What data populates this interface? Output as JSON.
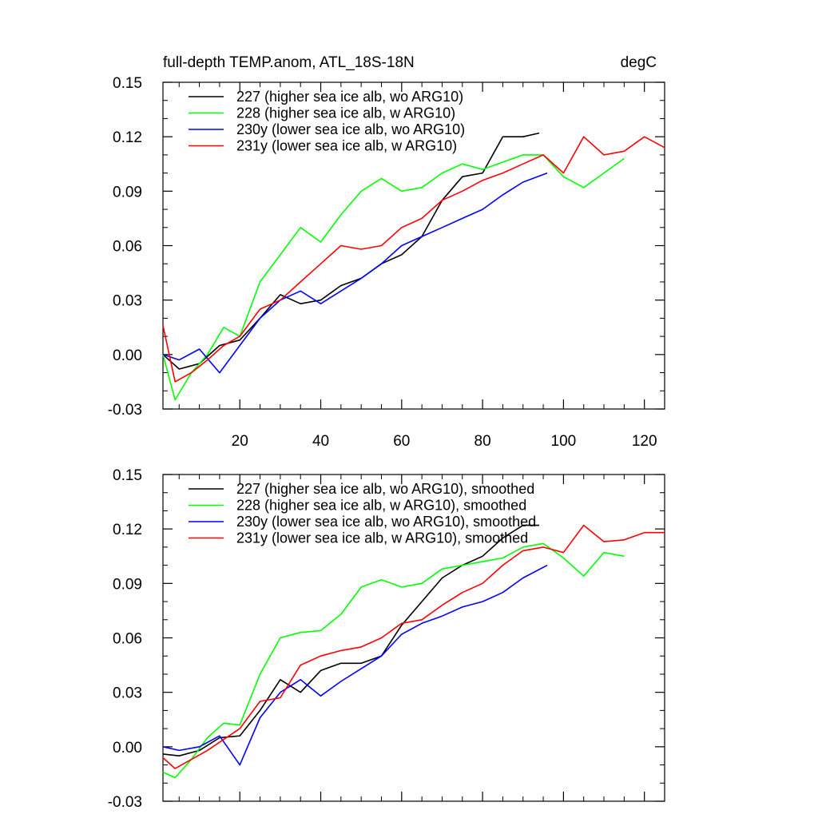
{
  "chart_data": [
    {
      "type": "line",
      "title": "full-depth TEMP.anom, ATL_18S-18N",
      "units": "degC",
      "xlabel": "",
      "ylabel": "",
      "xlim": [
        1,
        125
      ],
      "ylim": [
        -0.03,
        0.15
      ],
      "xticks": [
        20,
        40,
        60,
        80,
        100,
        120
      ],
      "xtick_labels": [
        "20",
        "40",
        "60",
        "80",
        "100",
        "120"
      ],
      "yticks": [
        -0.03,
        0.0,
        0.03,
        0.06,
        0.09,
        0.12,
        0.15
      ],
      "ytick_labels": [
        "-0.03",
        "0.00",
        "0.03",
        "0.06",
        "0.09",
        "0.12",
        "0.15"
      ],
      "legend_position": "top-left",
      "grid": false,
      "series": [
        {
          "name": "227 (higher sea ice alb, wo ARG10)",
          "color": "#000000",
          "x": [
            1,
            5,
            10,
            15,
            20,
            25,
            30,
            35,
            40,
            45,
            50,
            55,
            60,
            65,
            70,
            75,
            80,
            85,
            90,
            94
          ],
          "values": [
            0.0,
            -0.008,
            -0.005,
            0.005,
            0.008,
            0.02,
            0.033,
            0.028,
            0.03,
            0.038,
            0.042,
            0.05,
            0.055,
            0.065,
            0.085,
            0.098,
            0.1,
            0.12,
            0.12,
            0.122
          ]
        },
        {
          "name": "228 (higher sea ice alb, w ARG10)",
          "color": "#00ff00",
          "x": [
            1,
            4,
            8,
            12,
            16,
            20,
            25,
            30,
            35,
            40,
            45,
            50,
            55,
            60,
            65,
            70,
            75,
            80,
            85,
            90,
            95,
            100,
            105,
            110,
            115
          ],
          "values": [
            0.0,
            -0.025,
            -0.01,
            0.0,
            0.015,
            0.01,
            0.04,
            0.055,
            0.07,
            0.062,
            0.077,
            0.09,
            0.097,
            0.09,
            0.092,
            0.1,
            0.105,
            0.102,
            0.106,
            0.11,
            0.11,
            0.098,
            0.092,
            0.1,
            0.108
          ]
        },
        {
          "name": "230y (lower sea ice alb, wo ARG10)",
          "color": "#0000ff",
          "x": [
            1,
            5,
            10,
            15,
            20,
            25,
            30,
            35,
            40,
            45,
            50,
            55,
            60,
            65,
            70,
            75,
            80,
            85,
            90,
            96
          ],
          "values": [
            0.0,
            -0.003,
            0.003,
            -0.01,
            0.005,
            0.02,
            0.03,
            0.035,
            0.028,
            0.035,
            0.042,
            0.05,
            0.06,
            0.065,
            0.07,
            0.075,
            0.08,
            0.088,
            0.095,
            0.1
          ]
        },
        {
          "name": "231y (lower sea ice alb, w ARG10)",
          "color": "#ff0000",
          "x": [
            1,
            4,
            8,
            12,
            16,
            20,
            25,
            30,
            35,
            40,
            45,
            50,
            55,
            60,
            65,
            70,
            75,
            80,
            85,
            90,
            95,
            100,
            105,
            110,
            115,
            120,
            125
          ],
          "values": [
            0.016,
            -0.015,
            -0.01,
            -0.003,
            0.005,
            0.01,
            0.025,
            0.03,
            0.04,
            0.05,
            0.06,
            0.058,
            0.06,
            0.07,
            0.075,
            0.085,
            0.09,
            0.096,
            0.1,
            0.105,
            0.11,
            0.1,
            0.12,
            0.11,
            0.112,
            0.12,
            0.114
          ]
        }
      ]
    },
    {
      "type": "line",
      "title": "",
      "xlim": [
        1,
        125
      ],
      "ylim": [
        -0.03,
        0.15
      ],
      "xticks": [
        20,
        40,
        60,
        80,
        100,
        120
      ],
      "xtick_labels": [],
      "yticks": [
        -0.03,
        0.0,
        0.03,
        0.06,
        0.09,
        0.12,
        0.15
      ],
      "ytick_labels": [
        "-0.03",
        "0.00",
        "0.03",
        "0.06",
        "0.09",
        "0.12",
        "0.15"
      ],
      "legend_position": "top-left",
      "grid": false,
      "series": [
        {
          "name": "227 (higher sea ice alb, wo ARG10), smoothed",
          "color": "#000000",
          "x": [
            1,
            5,
            10,
            15,
            20,
            25,
            30,
            35,
            40,
            45,
            50,
            55,
            60,
            65,
            70,
            75,
            80,
            85,
            90,
            94
          ],
          "values": [
            -0.004,
            -0.005,
            -0.002,
            0.005,
            0.006,
            0.02,
            0.037,
            0.03,
            0.042,
            0.046,
            0.046,
            0.05,
            0.067,
            0.08,
            0.093,
            0.1,
            0.105,
            0.115,
            0.122,
            0.122
          ]
        },
        {
          "name": "228 (higher sea ice alb, w ARG10), smoothed",
          "color": "#00ff00",
          "x": [
            1,
            4,
            8,
            12,
            16,
            20,
            25,
            30,
            35,
            40,
            45,
            50,
            55,
            60,
            65,
            70,
            75,
            80,
            85,
            90,
            95,
            100,
            105,
            110,
            115
          ],
          "values": [
            -0.014,
            -0.017,
            -0.007,
            0.005,
            0.013,
            0.012,
            0.04,
            0.06,
            0.063,
            0.064,
            0.073,
            0.088,
            0.092,
            0.088,
            0.09,
            0.098,
            0.1,
            0.102,
            0.104,
            0.11,
            0.112,
            0.104,
            0.094,
            0.107,
            0.105
          ]
        },
        {
          "name": "230y (lower sea ice alb, wo ARG10), smoothed",
          "color": "#0000ff",
          "x": [
            1,
            5,
            10,
            15,
            20,
            25,
            30,
            35,
            40,
            45,
            50,
            55,
            60,
            65,
            70,
            75,
            80,
            85,
            90,
            96
          ],
          "values": [
            0.0,
            -0.002,
            0.0,
            0.006,
            -0.01,
            0.016,
            0.03,
            0.037,
            0.028,
            0.036,
            0.043,
            0.05,
            0.062,
            0.068,
            0.072,
            0.077,
            0.08,
            0.085,
            0.093,
            0.1
          ]
        },
        {
          "name": "231y (lower sea ice alb, w ARG10), smoothed",
          "color": "#ff0000",
          "x": [
            1,
            4,
            8,
            12,
            16,
            20,
            25,
            30,
            35,
            40,
            45,
            50,
            55,
            60,
            65,
            70,
            75,
            80,
            85,
            90,
            95,
            100,
            105,
            110,
            115,
            120,
            125
          ],
          "values": [
            -0.006,
            -0.012,
            -0.007,
            -0.002,
            0.004,
            0.01,
            0.025,
            0.027,
            0.045,
            0.05,
            0.053,
            0.055,
            0.06,
            0.068,
            0.07,
            0.078,
            0.085,
            0.09,
            0.1,
            0.108,
            0.11,
            0.107,
            0.122,
            0.113,
            0.114,
            0.118,
            0.118
          ]
        }
      ]
    }
  ]
}
